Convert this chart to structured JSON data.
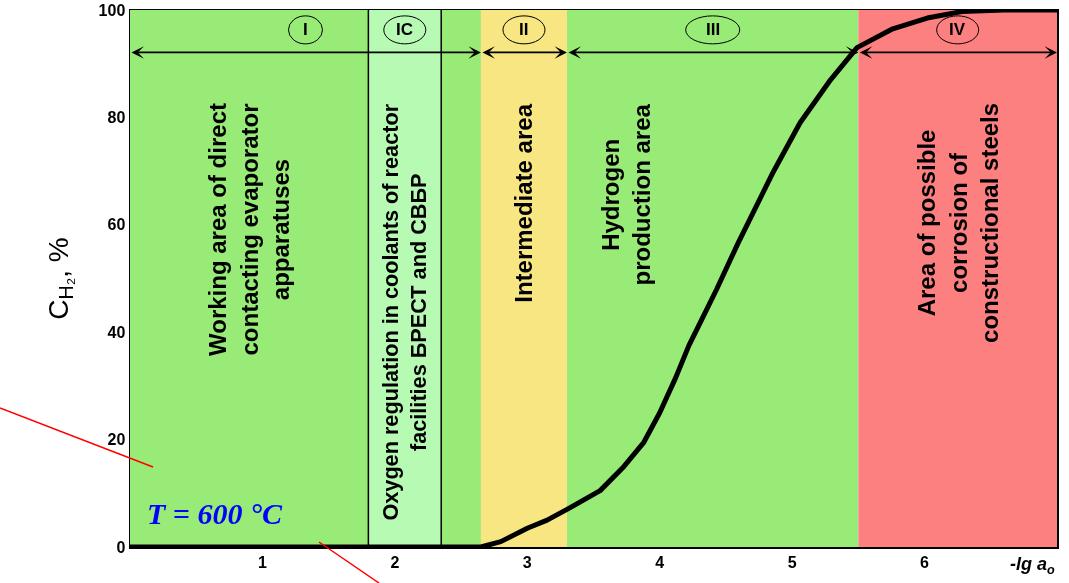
{
  "chart_data": {
    "type": "line",
    "ylabel": "C$_{H₂}$, %",
    "xlabel": "-lg a$_{o}$",
    "xlim": [
      0,
      7
    ],
    "xticks": [
      1,
      2,
      3,
      4,
      5,
      6
    ],
    "ylim": [
      0,
      100
    ],
    "yticks": [
      0,
      20,
      40,
      60,
      80,
      100
    ],
    "x": [
      0,
      2.65,
      2.8,
      3.0,
      3.15,
      3.3,
      3.55,
      3.73,
      3.88,
      4.0,
      4.12,
      4.22,
      4.33,
      4.43,
      4.59,
      4.85,
      5.06,
      5.29,
      5.49,
      5.76,
      6.02,
      6.28,
      6.6,
      7.0
    ],
    "series": [
      {
        "color": "#000000",
        "values": [
          0,
          0,
          1,
          3.5,
          5,
          7,
          10.5,
          15,
          19.5,
          25,
          31.5,
          37.5,
          43,
          48,
          56.5,
          69.5,
          79,
          87,
          93,
          96.5,
          98.5,
          99.7,
          100,
          100
        ]
      }
    ],
    "line_style": "solid",
    "bands": [
      {
        "axis": "x",
        "from": 0,
        "to": 2.65,
        "label": "I",
        "color": "#98eb76"
      },
      {
        "axis": "x",
        "from": 1.8,
        "to": 2.35,
        "label": "IC",
        "color": "#b7fab4"
      },
      {
        "axis": "x",
        "from": 2.65,
        "to": 3.3,
        "label": "II",
        "color": "#f7e682"
      },
      {
        "axis": "x",
        "from": 3.3,
        "to": 5.5,
        "label": "III",
        "color": "#98eb76"
      },
      {
        "axis": "x",
        "from": 5.5,
        "to": 7,
        "label": "IV",
        "color": "#fd8080"
      }
    ],
    "ref_lines": [
      {
        "axis": "x",
        "value": 1.8,
        "color": "#000000"
      },
      {
        "axis": "x",
        "value": 2.35,
        "color": "#000000"
      }
    ],
    "annotations": [
      "Working area of direct\ncontacting evaporator\napparatuses",
      "Oxygen regulation in coolants of reactor\nfacilities БРЕСТ and СВБР",
      "Intermediate area",
      "Hydrogen\nproduction area",
      "Area of possible\ncorrosion of\nconstructional steels",
      "T = 600 °C"
    ]
  }
}
